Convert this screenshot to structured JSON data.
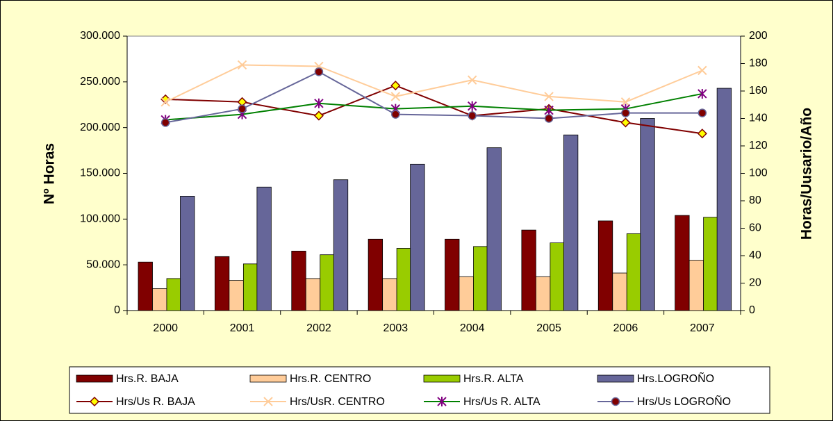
{
  "chart_data": {
    "type": "bar",
    "y_label": "Nº Horas",
    "y2_label": "Horas/Uusario/Año",
    "categories": [
      "2000",
      "2001",
      "2002",
      "2003",
      "2004",
      "2005",
      "2006",
      "2007"
    ],
    "ylim": [
      0,
      300000
    ],
    "yticks": [
      0,
      {
        "value": 50000,
        "label": "50.000"
      },
      {
        "value": 100000,
        "label": "100.000"
      },
      {
        "value": 150000,
        "label": "150.000"
      },
      {
        "value": 200000,
        "label": "200.000"
      },
      {
        "value": 250000,
        "label": "250.000"
      },
      {
        "value": 300000,
        "label": "300.000"
      }
    ],
    "y2lim": [
      0,
      200
    ],
    "y2ticks": [
      0,
      20,
      40,
      60,
      80,
      100,
      120,
      140,
      160,
      180,
      200
    ],
    "legend": "bottom",
    "series": [
      {
        "name": "Hrs.R. BAJA",
        "type": "bar",
        "color": "#800000",
        "values": [
          53000,
          59000,
          65000,
          78000,
          78000,
          88000,
          98000,
          104000
        ]
      },
      {
        "name": "Hrs.R. CENTRO",
        "type": "bar",
        "color": "#ffcc99",
        "values": [
          24000,
          33000,
          35000,
          35000,
          37000,
          37000,
          41000,
          55000
        ]
      },
      {
        "name": "Hrs.R. ALTA",
        "type": "bar",
        "color": "#99cc00",
        "values": [
          35000,
          51000,
          61000,
          68000,
          70000,
          74000,
          84000,
          102000
        ]
      },
      {
        "name": "Hrs.LOGROÑO",
        "type": "bar",
        "color": "#666699",
        "values": [
          125000,
          135000,
          143000,
          160000,
          178000,
          192000,
          210000,
          243000
        ]
      },
      {
        "name": "Hrs/Us R. BAJA",
        "type": "line",
        "axis": "y2",
        "color": "#800000",
        "marker": "diamond",
        "marker_color": "#ffff00",
        "values": [
          154,
          152,
          142,
          164,
          142,
          147,
          137,
          129
        ]
      },
      {
        "name": "Hrs/UsR. CENTRO",
        "type": "line",
        "axis": "y2",
        "color": "#ffcc99",
        "marker": "x",
        "marker_color": "#ffcc99",
        "values": [
          152,
          179,
          178,
          156,
          168,
          156,
          152,
          175
        ]
      },
      {
        "name": "Hrs/Us R. ALTA",
        "type": "line",
        "axis": "y2",
        "color": "#008000",
        "marker": "star",
        "marker_color": "#800080",
        "values": [
          139,
          143,
          151,
          147,
          149,
          146,
          147,
          158
        ]
      },
      {
        "name": "Hrs/Us LOGROÑO",
        "type": "line",
        "axis": "y2",
        "color": "#666699",
        "marker": "circle",
        "marker_color": "#800000",
        "values": [
          137,
          147,
          174,
          143,
          142,
          140,
          144,
          144
        ]
      }
    ]
  }
}
